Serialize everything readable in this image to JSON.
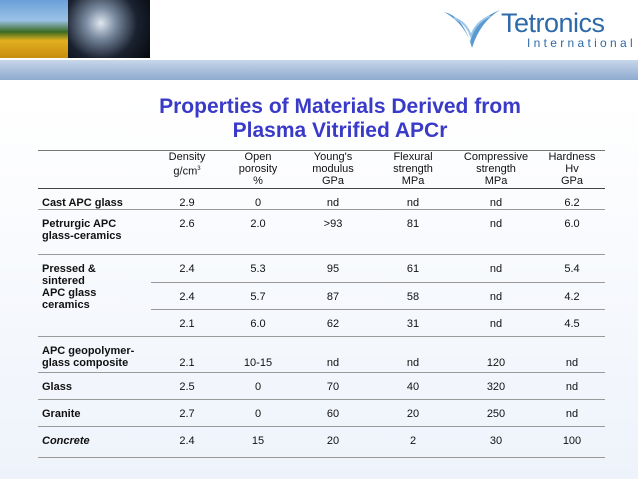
{
  "header": {
    "logo": "Tetronics",
    "logo_sub": "International"
  },
  "title": [
    "Properties of Materials Derived from",
    "Plasma Vitrified APCr"
  ],
  "table": {
    "columns": [
      [
        "Density",
        "g/cm",
        "3"
      ],
      [
        "Open",
        "porosity",
        "%"
      ],
      [
        "Young's",
        "modulus",
        "GPa"
      ],
      [
        "Flexural",
        "strength",
        "MPa"
      ],
      [
        "Compressive",
        "strength",
        "MPa"
      ],
      [
        "Hardness",
        "Hv",
        "GPa"
      ]
    ],
    "groups": [
      {
        "label": [
          "Cast APC glass"
        ],
        "rows": [
          [
            "2.9",
            "0",
            "nd",
            "nd",
            "nd",
            "6.2"
          ]
        ]
      },
      {
        "label": [
          "Petrurgic APC",
          "glass-ceramics"
        ],
        "rows": [
          [
            "2.6",
            "2.0",
            ">93",
            "81",
            "nd",
            "6.0"
          ]
        ]
      },
      {
        "label": [
          "Pressed &",
          "sintered",
          "APC glass",
          "ceramics"
        ],
        "rows": [
          [
            "2.4",
            "5.3",
            "95",
            "61",
            "nd",
            "5.4"
          ],
          [
            "2.4",
            "5.7",
            "87",
            "58",
            "nd",
            "4.2"
          ],
          [
            "2.1",
            "6.0",
            "62",
            "31",
            "nd",
            "4.5"
          ]
        ]
      },
      {
        "label": [
          "APC geopolymer-",
          "glass composite"
        ],
        "rows": [
          [
            "2.1",
            "10-15",
            "nd",
            "nd",
            "120",
            "nd"
          ]
        ]
      },
      {
        "label": [
          "Glass"
        ],
        "rows": [
          [
            "2.5",
            "0",
            "70",
            "40",
            "320",
            "nd"
          ]
        ]
      },
      {
        "label": [
          "Granite"
        ],
        "rows": [
          [
            "2.7",
            "0",
            "60",
            "20",
            "250",
            "nd"
          ]
        ]
      },
      {
        "label": [
          "Concrete"
        ],
        "rows": [
          [
            "2.4",
            "15",
            "20",
            "2",
            "30",
            "100"
          ]
        ]
      }
    ]
  }
}
